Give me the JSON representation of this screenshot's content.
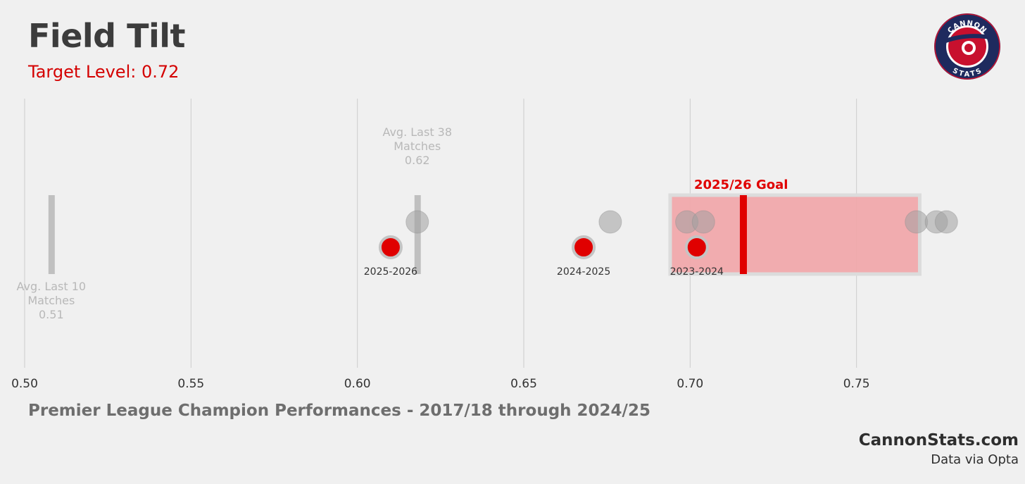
{
  "header": {
    "title": "Field Tilt",
    "subtitle": "Target Level: 0.72"
  },
  "footer": {
    "x_title": "Premier League Champion Performances - 2017/18 through 2024/25",
    "brand": "CannonStats.com",
    "source": "Data via Opta"
  },
  "logo": {
    "top_text": "CANNON",
    "bottom_text": "STATS",
    "colors": {
      "ring": "#1e2a5e",
      "inner": "#c8102e",
      "text": "#ffffff"
    }
  },
  "colors": {
    "background": "#f0f0f0",
    "accent": "#e00000",
    "goal_band": "#f0a8ab",
    "champion_point": "#a0a0a0",
    "grid": "#cccccc"
  },
  "chart_data": {
    "type": "scatter",
    "title": "Field Tilt",
    "subtitle": "Target Level: 0.72",
    "xlabel": "Premier League Champion Performances - 2017/18 through 2024/25",
    "xlim": [
      0.5,
      0.8
    ],
    "xticks": [
      0.5,
      0.55,
      0.6,
      0.65,
      0.7,
      0.75
    ],
    "xtick_labels": [
      "0.50",
      "0.55",
      "0.60",
      "0.65",
      "0.70",
      "0.75"
    ],
    "grid": true,
    "champion_seasons": [
      0.618,
      0.676,
      0.699,
      0.704,
      0.768,
      0.774,
      0.777
    ],
    "team_seasons": [
      {
        "label": "2025-2026",
        "value": 0.61
      },
      {
        "label": "2024-2025",
        "value": 0.668
      },
      {
        "label": "2023-2024",
        "value": 0.702
      }
    ],
    "averages": [
      {
        "lines": [
          "Avg. Last 38",
          "Matches",
          "0.62"
        ],
        "value": 0.618
      },
      {
        "lines": [
          "Avg. Last 10",
          "Matches",
          "0.51"
        ],
        "value": 0.508
      }
    ],
    "goal": {
      "label": "2025/26 Goal",
      "range": [
        0.694,
        0.769
      ],
      "target": 0.716
    }
  }
}
